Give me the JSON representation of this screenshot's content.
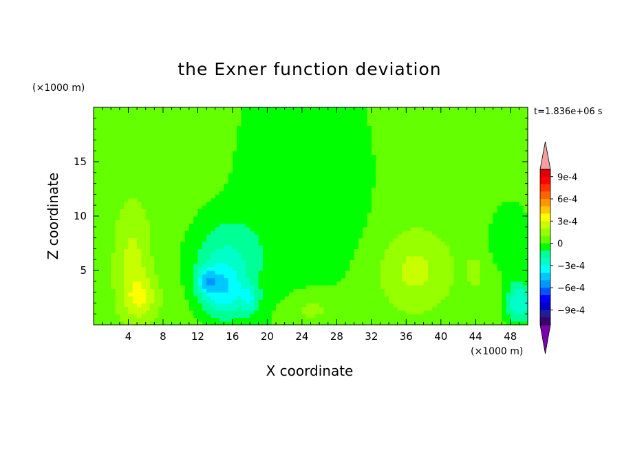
{
  "chart_data": {
    "type": "heatmap",
    "title": "the Exner function deviation",
    "xlabel": "X coordinate",
    "ylabel": "Z coordinate",
    "x_unit": "(×1000 m)",
    "y_unit": "(×1000 m)",
    "time_label": "t=1.836e+06 s",
    "xlim": [
      0,
      50
    ],
    "ylim": [
      0,
      20
    ],
    "x_ticks": [
      "4",
      "8",
      "12",
      "16",
      "20",
      "24",
      "28",
      "32",
      "36",
      "40",
      "44",
      "48"
    ],
    "y_ticks": [
      "5",
      "10",
      "15"
    ],
    "colorbar": {
      "levels": [
        -0.0011,
        -0.001,
        -0.0009,
        -0.0008,
        -0.0007,
        -0.0006,
        -0.0005,
        -0.0004,
        -0.0003,
        -0.0002,
        -0.0001,
        0,
        0.0001,
        0.0002,
        0.0003,
        0.0004,
        0.0005,
        0.0006,
        0.0007,
        0.0008,
        0.0009,
        0.001,
        0.0011
      ],
      "colors": [
        "#7a00b0",
        "#3a006e",
        "#1e1e96",
        "#0000c8",
        "#0000ff",
        "#0055ff",
        "#0096ff",
        "#00c8ff",
        "#00ffff",
        "#00ffc8",
        "#00ff96",
        "#00ff00",
        "#64ff00",
        "#96ff00",
        "#c8ff00",
        "#ffff00",
        "#ffc800",
        "#ff9600",
        "#ff6400",
        "#ff3200",
        "#ff0000",
        "#dc0000",
        "#f4a0a0"
      ],
      "tick_labels": [
        "9e-4",
        "6e-4",
        "3e-4",
        "0",
        "−3e-4",
        "−6e-4",
        "−9e-4"
      ]
    },
    "field": {
      "background": 5e-05,
      "features": [
        {
          "x": 21,
          "z": 12,
          "sx": 6,
          "sz": 14,
          "v": -0.0001
        },
        {
          "x": 28,
          "z": 14,
          "sx": 5,
          "sz": 10,
          "v": -0.0001
        },
        {
          "x": 48,
          "z": 8,
          "sx": 3,
          "sz": 4,
          "v": -0.0001
        },
        {
          "x": 15,
          "z": 6,
          "sx": 4,
          "sz": 4,
          "v": -0.00022
        },
        {
          "x": 15,
          "z": 3,
          "sx": 2.5,
          "sz": 2.5,
          "v": -0.0003
        },
        {
          "x": 13,
          "z": 4,
          "sx": 1.2,
          "sz": 1.2,
          "v": -0.00028
        },
        {
          "x": 18,
          "z": 2.3,
          "sx": 1,
          "sz": 1.3,
          "v": -0.00022
        },
        {
          "x": 49,
          "z": 2,
          "sx": 1.5,
          "sz": 2,
          "v": -0.00035
        },
        {
          "x": 4.5,
          "z": 6,
          "sx": 2,
          "sz": 5,
          "v": 0.00018
        },
        {
          "x": 5.5,
          "z": 2.5,
          "sx": 2,
          "sz": 2,
          "v": 0.0002
        },
        {
          "x": 37,
          "z": 5,
          "sx": 4,
          "sz": 3.5,
          "v": 0.00018
        },
        {
          "x": 25,
          "z": 1.5,
          "sx": 3,
          "sz": 1.5,
          "v": 0.00012
        },
        {
          "x": 44,
          "z": 5,
          "sx": 1,
          "sz": 1.5,
          "v": 0.0001
        }
      ]
    }
  }
}
